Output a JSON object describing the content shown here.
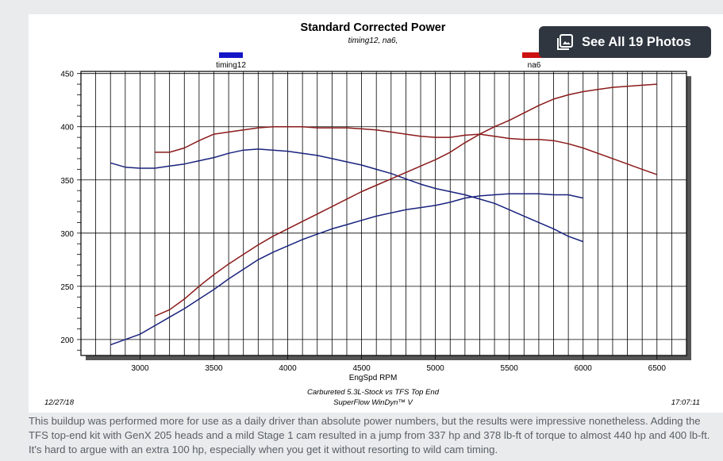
{
  "chart_data": {
    "type": "line",
    "title": "Standard Corrected Power",
    "subtitle": "timing12, na6,",
    "xlabel": "EngSpd RPM",
    "ylabel": "",
    "xlim": [
      2600,
      6700
    ],
    "ylim": [
      185,
      452
    ],
    "x_ticks": [
      3000,
      3500,
      4000,
      4500,
      5000,
      5500,
      6000,
      6500
    ],
    "y_ticks": [
      200,
      250,
      300,
      350,
      400,
      450
    ],
    "grid": true,
    "legend": [
      {
        "name": "timing12",
        "color": "#1515c8"
      },
      {
        "name": "na6",
        "color": "#cc1010"
      }
    ],
    "series": [
      {
        "name": "timing12 torque",
        "legend": "timing12",
        "color": "#1a237e",
        "x": [
          2800,
          2900,
          3000,
          3100,
          3200,
          3300,
          3400,
          3500,
          3600,
          3700,
          3800,
          3900,
          4000,
          4100,
          4200,
          4300,
          4400,
          4500,
          4600,
          4700,
          4800,
          4900,
          5000,
          5100,
          5200,
          5300,
          5400,
          5500,
          5600,
          5700,
          5800,
          5900,
          6000
        ],
        "y": [
          366,
          362,
          361,
          361,
          363,
          365,
          368,
          371,
          375,
          378,
          379,
          378,
          377,
          375,
          373,
          370,
          367,
          364,
          360,
          356,
          351,
          346,
          342,
          339,
          336,
          332,
          328,
          322,
          316,
          310,
          304,
          297,
          292
        ]
      },
      {
        "name": "timing12 hp",
        "legend": "timing12",
        "color": "#1a237e",
        "x": [
          2800,
          2900,
          3000,
          3100,
          3200,
          3300,
          3400,
          3500,
          3600,
          3700,
          3800,
          3900,
          4000,
          4100,
          4200,
          4300,
          4400,
          4500,
          4600,
          4700,
          4800,
          4900,
          5000,
          5100,
          5200,
          5300,
          5400,
          5500,
          5600,
          5700,
          5800,
          5900,
          6000
        ],
        "y": [
          195,
          200,
          205,
          213,
          221,
          229,
          238,
          247,
          257,
          266,
          275,
          282,
          288,
          294,
          299,
          304,
          308,
          312,
          316,
          319,
          322,
          324,
          326,
          329,
          333,
          335,
          336,
          337,
          337,
          337,
          336,
          336,
          333
        ]
      },
      {
        "name": "na6 torque",
        "legend": "na6",
        "color": "#8b1a1a",
        "x": [
          3100,
          3200,
          3300,
          3400,
          3500,
          3600,
          3700,
          3800,
          3900,
          4000,
          4100,
          4200,
          4300,
          4400,
          4500,
          4600,
          4700,
          4800,
          4900,
          5000,
          5100,
          5200,
          5300,
          5400,
          5500,
          5600,
          5700,
          5800,
          5900,
          6000,
          6100,
          6200,
          6300,
          6400,
          6500
        ],
        "y": [
          376,
          376,
          380,
          387,
          393,
          395,
          397,
          399,
          400,
          400,
          400,
          399,
          399,
          399,
          398,
          397,
          395,
          393,
          391,
          390,
          390,
          392,
          393,
          391,
          389,
          388,
          388,
          387,
          384,
          380,
          375,
          370,
          365,
          360,
          355
        ]
      },
      {
        "name": "na6 hp",
        "legend": "na6",
        "color": "#8b1a1a",
        "x": [
          3100,
          3200,
          3300,
          3400,
          3500,
          3600,
          3700,
          3800,
          3900,
          4000,
          4100,
          4200,
          4300,
          4400,
          4500,
          4600,
          4700,
          4800,
          4900,
          5000,
          5100,
          5200,
          5300,
          5400,
          5500,
          5600,
          5700,
          5800,
          5900,
          6000,
          6100,
          6200,
          6300,
          6400,
          6500
        ],
        "y": [
          222,
          228,
          238,
          250,
          261,
          271,
          280,
          289,
          297,
          304,
          311,
          318,
          325,
          332,
          339,
          345,
          351,
          357,
          363,
          369,
          376,
          385,
          393,
          400,
          406,
          413,
          420,
          426,
          430,
          433,
          435,
          437,
          438,
          439,
          440
        ]
      }
    ]
  },
  "footer": {
    "date": "12/27/18",
    "time": "17:07:11",
    "description": "Carbureted 5.3L-Stock vs TFS Top End",
    "software": "SuperFlow WinDyn™ V"
  },
  "photos_button": {
    "label": "See All 19 Photos",
    "icon": "gallery-icon"
  },
  "caption": "This buildup was performed more for use as a daily driver than absolute power numbers, but the results were impressive nonetheless. Adding the TFS top-end kit with GenX 205 heads and a mild Stage 1 cam resulted in a jump from 337 hp and 378 lb-ft of torque to almost 440 hp and 400 lb-ft. It's hard to argue with an extra 100 hp, especially when you get it without resorting to wild cam timing.",
  "colors": {
    "grid": "#000000",
    "shadow": "#555555",
    "button_bg": "#2f3640",
    "caption_text": "#5a6066"
  }
}
